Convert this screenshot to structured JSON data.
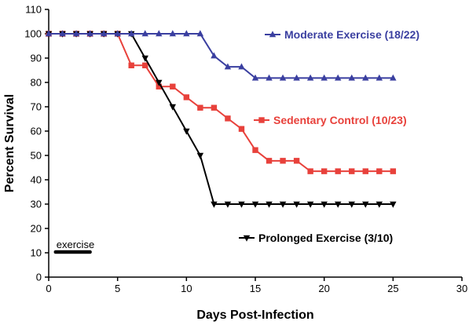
{
  "chart_data": {
    "type": "line",
    "title": "",
    "xlabel": "Days Post-Infection",
    "ylabel": "Percent Survival",
    "xlim": [
      0,
      30
    ],
    "ylim": [
      0,
      110
    ],
    "xticks": [
      0,
      5,
      10,
      15,
      20,
      25,
      30
    ],
    "yticks": [
      0,
      10,
      20,
      30,
      40,
      50,
      60,
      70,
      80,
      90,
      100,
      110
    ],
    "grid": false,
    "series": [
      {
        "name": "Moderate Exercise (18/22)",
        "color": "#3a3fa0",
        "marker": "triangle-up",
        "x": [
          0,
          1,
          2,
          3,
          4,
          5,
          6,
          7,
          8,
          9,
          10,
          11,
          12,
          13,
          14,
          15,
          16,
          17,
          18,
          19,
          20,
          21,
          22,
          23,
          24,
          25
        ],
        "y": [
          100,
          100,
          100,
          100,
          100,
          100,
          100,
          100,
          100,
          100,
          100,
          100,
          90.9,
          86.4,
          86.4,
          81.8,
          81.8,
          81.8,
          81.8,
          81.8,
          81.8,
          81.8,
          81.8,
          81.8,
          81.8,
          81.8
        ]
      },
      {
        "name": "Sedentary Control (10/23)",
        "color": "#e8413b",
        "marker": "square",
        "x": [
          0,
          1,
          2,
          3,
          4,
          5,
          6,
          7,
          8,
          9,
          10,
          11,
          12,
          13,
          14,
          15,
          16,
          17,
          18,
          19,
          20,
          21,
          22,
          23,
          24,
          25
        ],
        "y": [
          100,
          100,
          100,
          100,
          100,
          100,
          87,
          87,
          78.3,
          78.3,
          73.9,
          69.6,
          69.6,
          65.2,
          60.9,
          52.2,
          47.8,
          47.8,
          47.8,
          43.5,
          43.5,
          43.5,
          43.5,
          43.5,
          43.5,
          43.5
        ]
      },
      {
        "name": "Prolonged Exercise (3/10)",
        "color": "#000000",
        "marker": "triangle-down",
        "x": [
          0,
          1,
          2,
          3,
          4,
          5,
          6,
          7,
          8,
          9,
          10,
          11,
          12,
          13,
          14,
          15,
          16,
          17,
          18,
          19,
          20,
          21,
          22,
          23,
          24,
          25
        ],
        "y": [
          100,
          100,
          100,
          100,
          100,
          100,
          100,
          90,
          80,
          70,
          60,
          50,
          30,
          30,
          30,
          30,
          30,
          30,
          30,
          30,
          30,
          30,
          30,
          30,
          30,
          30
        ]
      }
    ],
    "annotations": [
      {
        "text": "exercise",
        "x_range": [
          0.5,
          3
        ],
        "y": 10
      }
    ]
  }
}
